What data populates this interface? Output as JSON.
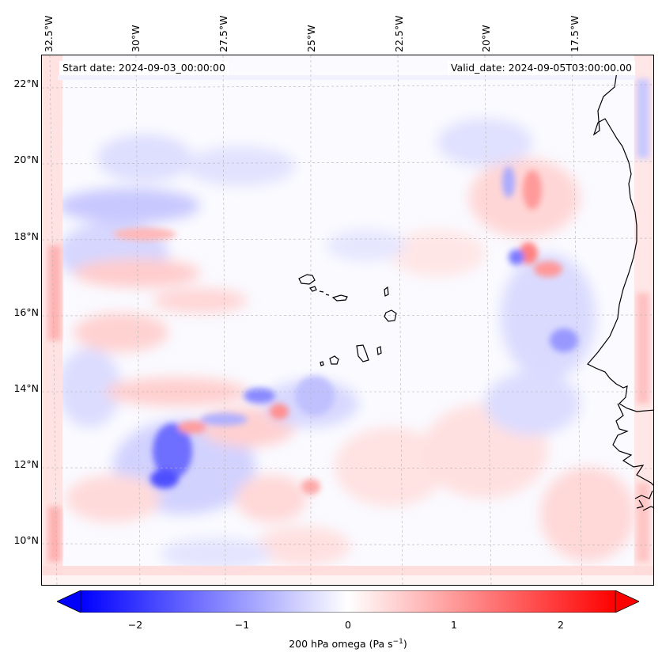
{
  "header": {
    "start_date": "Start date: 2024-09-03_00:00:00",
    "valid_date": "Valid_date: 2024-09-05T03:00:00.00"
  },
  "longitude_labels": [
    "32.5°W",
    "30°W",
    "27.5°W",
    "25°W",
    "22.5°W",
    "20°W",
    "17.5°W"
  ],
  "latitude_labels": [
    "22°N",
    "20°N",
    "18°N",
    "16°N",
    "14°N",
    "12°N",
    "10°N"
  ],
  "colorbar": {
    "ticks": [
      "−2",
      "−1",
      "0",
      "1",
      "2"
    ],
    "label_text": "200 hPa omega (Pa s",
    "label_exponent": "−1",
    "label_close": ")",
    "range": [
      -2.7,
      2.7
    ],
    "colors": {
      "negative": "#0000ff",
      "zero": "#ffffff",
      "positive": "#ff0000"
    }
  },
  "map": {
    "variable": "200 hPa omega",
    "features": [
      "coastline-africa",
      "cape-verde-islands",
      "gridlines"
    ]
  }
}
